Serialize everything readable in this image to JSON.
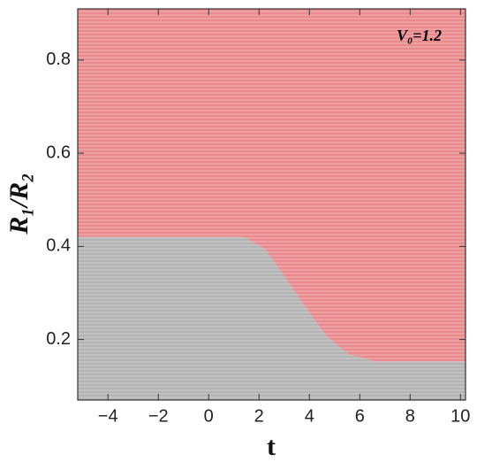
{
  "chart_data": {
    "type": "region",
    "xlabel": "t",
    "ylabel": "R₁/R₂",
    "annotation": "V₀=1.2",
    "x": [
      -5.2,
      1.4,
      2.24,
      3.29,
      4.0,
      4.7,
      5.56,
      6.6,
      10.2
    ],
    "series": [
      {
        "color": "#e98a8e",
        "values": [
          0.42,
          0.42,
          0.394,
          0.313,
          0.257,
          0.206,
          0.168,
          0.153,
          0.153
        ]
      }
    ],
    "fill_below": "#b3b3b3",
    "xlim": [
      -5.2,
      10.2
    ],
    "ylim": [
      0.07,
      0.91
    ],
    "xticks": [
      {
        "value": -4,
        "label": "−4"
      },
      {
        "value": -2,
        "label": "−2"
      },
      0,
      2,
      4,
      6,
      8,
      10
    ],
    "yticks": [
      0.2,
      0.4,
      0.6,
      0.8
    ]
  }
}
